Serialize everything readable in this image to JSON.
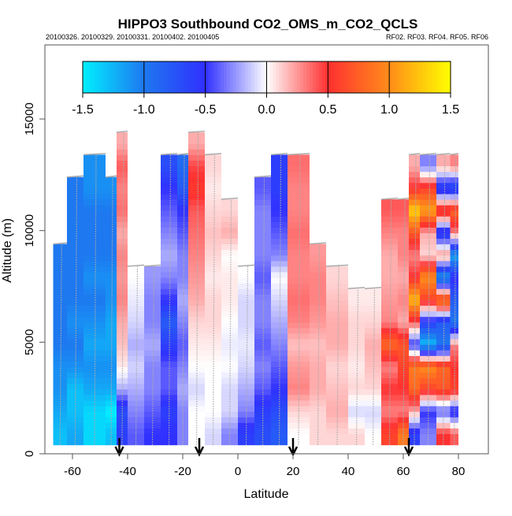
{
  "chart_data": {
    "type": "heatmap",
    "title": "HIPPO3 Southbound CO2_OMS_m_CO2_QCLS",
    "subtitle_left": "20100326. 20100329. 20100331. 20100402. 20100405",
    "subtitle_right": "RF02. RF03. RF04. RF05. RF06",
    "xlabel": "Latitude",
    "ylabel": "Altitude (m)",
    "xlim": [
      -70,
      88
    ],
    "ylim": [
      0,
      18300
    ],
    "x_ticks": [
      -60,
      -40,
      -20,
      0,
      20,
      40,
      60,
      80
    ],
    "x_tick_labels": [
      "-60",
      "-40",
      "-20",
      "0",
      "20",
      "40",
      "60",
      "80"
    ],
    "y_ticks": [
      0,
      5000,
      10000,
      15000
    ],
    "y_tick_labels": [
      "0",
      "5000",
      "10000",
      "15000"
    ],
    "colorbar": {
      "range": [
        -1.5,
        1.5
      ],
      "ticks": [
        -1.5,
        -1.0,
        -0.5,
        0.0,
        0.5,
        1.0,
        1.5
      ],
      "tick_labels": [
        "-1.5",
        "-1.0",
        "-0.5",
        "0.0",
        "0.5",
        "1.0",
        "1.5"
      ],
      "stops": [
        {
          "v": -1.5,
          "c": "#00f0ff"
        },
        {
          "v": -1.0,
          "c": "#1e78f0"
        },
        {
          "v": -0.5,
          "c": "#3030ff"
        },
        {
          "v": 0.0,
          "c": "#ffffff"
        },
        {
          "v": 0.5,
          "c": "#ff3030"
        },
        {
          "v": 1.0,
          "c": "#ff8c1a"
        },
        {
          "v": 1.5,
          "c": "#ffff00"
        }
      ]
    },
    "altitude_bin_m": 1000,
    "columns": [
      {
        "lat": [
          -67,
          -62
        ],
        "values": [
          -1.3,
          -1.2,
          -1.1,
          -1.1,
          -1.0,
          -1.0,
          -1.0,
          -1.0,
          -1.0
        ]
      },
      {
        "lat": [
          -62,
          -56
        ],
        "values": [
          -1.2,
          -1.3,
          -1.3,
          -1.1,
          -1.0,
          -1.1,
          -1.0,
          -1.0,
          -1.0,
          -1.0,
          -1.0,
          -1.0
        ]
      },
      {
        "lat": [
          -56,
          -48
        ],
        "values": [
          -1.4,
          -1.4,
          -1.2,
          -1.1,
          -1.2,
          -1.1,
          -1.0,
          -1.1,
          -1.0,
          -1.0,
          -1.0,
          -1.1,
          -1.1
        ]
      },
      {
        "lat": [
          -48,
          -44
        ],
        "values": [
          -1.3,
          -1.5,
          -1.2,
          -1.1,
          -1.2,
          -1.2,
          -1.1,
          -1.1,
          -1.0,
          -1.0,
          -1.0,
          -1.1
        ]
      },
      {
        "lat": [
          -44,
          -40
        ],
        "values": [
          -0.6,
          -0.7,
          -0.2,
          0.05,
          0.15,
          0.2,
          0.3,
          0.25,
          0.3,
          0.2,
          0.35,
          0.3,
          0.4,
          0.2
        ]
      },
      {
        "lat": [
          -40,
          -34
        ],
        "values": [
          -0.4,
          -0.3,
          -0.2,
          -0.1,
          -0.2,
          -0.1,
          -0.05,
          0.0
        ]
      },
      {
        "lat": [
          -34,
          -28
        ],
        "values": [
          -0.5,
          -0.4,
          -0.3,
          -0.3,
          -0.2,
          -0.3,
          -0.3,
          -0.25
        ]
      },
      {
        "lat": [
          -28,
          -22
        ],
        "values": [
          -0.5,
          -0.6,
          -0.4,
          -0.4,
          -0.6,
          -0.8,
          -0.5,
          -0.3,
          -0.2,
          -0.3,
          -0.4,
          -0.5,
          -0.7
        ]
      },
      {
        "lat": [
          -22,
          -18
        ],
        "values": [
          -0.3,
          -0.3,
          -0.2,
          -0.3,
          -0.4,
          -0.3,
          -0.2,
          -0.3,
          -0.3,
          -0.4,
          -0.5,
          -0.8,
          -0.9
        ]
      },
      {
        "lat": [
          -18,
          -12
        ],
        "values": [
          0.0,
          0.0,
          -0.1,
          0.0,
          0.05,
          0.1,
          0.2,
          0.25,
          0.3,
          0.35,
          0.4,
          0.55,
          0.45,
          0.2
        ]
      },
      {
        "lat": [
          -12,
          -6
        ],
        "values": [
          -0.1,
          0.0,
          0.0,
          0.0,
          0.05,
          0.1,
          0.1,
          0.05,
          0.1,
          0.15,
          0.1,
          0.05,
          0.1
        ]
      },
      {
        "lat": [
          -6,
          0
        ],
        "values": [
          -0.3,
          -0.1,
          -0.1,
          0.0,
          -0.05,
          0.0,
          0.05,
          0.05,
          0.0,
          0.2,
          0.1
        ]
      },
      {
        "lat": [
          0,
          6
        ],
        "values": [
          -0.6,
          -0.3,
          -0.2,
          -0.1,
          -0.05,
          -0.1,
          -0.1,
          0.0
        ]
      },
      {
        "lat": [
          6,
          12
        ],
        "values": [
          -0.7,
          -0.6,
          -0.4,
          -0.3,
          -0.4,
          -0.3,
          -0.3,
          -0.4,
          -0.3,
          -0.3,
          -0.3,
          -0.4
        ]
      },
      {
        "lat": [
          12,
          18
        ],
        "values": [
          -0.8,
          -0.7,
          -0.5,
          -0.4,
          -0.3,
          -0.2,
          -0.1,
          0.0,
          -0.3,
          -0.4,
          -0.5,
          -0.6,
          -0.6
        ]
      },
      {
        "lat": [
          18,
          26
        ],
        "values": [
          0.0,
          0.1,
          0.3,
          0.25,
          0.15,
          0.3,
          0.35,
          0.3,
          0.3,
          0.35,
          0.3,
          0.3,
          0.35
        ]
      },
      {
        "lat": [
          26,
          32
        ],
        "values": [
          0.1,
          0.1,
          0.2,
          0.2,
          0.15,
          0.25,
          0.3,
          0.3,
          0.25
        ]
      },
      {
        "lat": [
          32,
          40
        ],
        "values": [
          0.1,
          0.2,
          0.15,
          0.1,
          0.2,
          0.2,
          0.15,
          0.1
        ]
      },
      {
        "lat": [
          40,
          46
        ],
        "values": [
          0.1,
          -0.1,
          0.1,
          0.05,
          0.1,
          0.1,
          0.05
        ]
      },
      {
        "lat": [
          46,
          52
        ],
        "values": [
          0.0,
          -0.1,
          0.1,
          0.15,
          0.2,
          0.1,
          0.05
        ]
      },
      {
        "lat": [
          52,
          58
        ],
        "values": [
          0.6,
          0.3,
          0.5,
          0.3,
          0.8,
          0.3,
          0.25,
          0.2,
          0.2,
          0.3,
          0.4
        ]
      },
      {
        "lat": [
          58,
          62
        ],
        "values": [
          0.9,
          0.3,
          0.5,
          0.6,
          0.7,
          0.2,
          0.3,
          0.2,
          0.3,
          0.3,
          0.4
        ]
      },
      {
        "lat": [
          62,
          66
        ],
        "values": [
          -0.6,
          0.2,
          0.8,
          0.9,
          -0.5,
          0.4,
          1.2,
          0.5,
          0.3,
          0.7,
          1.3,
          0.5,
          0.2
        ]
      },
      {
        "lat": [
          66,
          72
        ],
        "values": [
          -0.3,
          -0.5,
          0.6,
          1.0,
          -1.3,
          -0.6,
          0.6,
          1.0,
          0.1,
          0.2,
          1.1,
          0.6,
          -0.3
        ]
      },
      {
        "lat": [
          72,
          77
        ],
        "values": [
          0.5,
          -0.4,
          0.7,
          0.8,
          -1.0,
          -0.8,
          1.0,
          -1.2,
          0.3,
          -0.7,
          0.7,
          -0.7,
          0.2
        ]
      },
      {
        "lat": [
          77,
          80
        ],
        "values": [
          0.4,
          -0.6,
          0.6,
          0.5,
          0.3,
          -1.0,
          -0.8,
          -0.5,
          -1.2,
          0.3,
          0.8,
          -0.8,
          0.3
        ]
      }
    ],
    "arrow_markers_lat": [
      -43,
      -14,
      20,
      62
    ]
  }
}
